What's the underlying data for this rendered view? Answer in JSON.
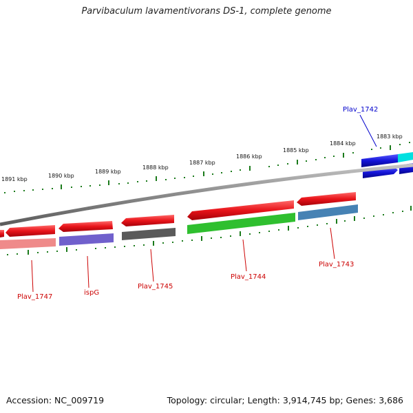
{
  "title": "Parvibaculum lavamentivorans DS-1, complete genome",
  "footer": {
    "accession": "Accession: NC_009719",
    "stats": "Topology: circular; Length: 3,914,745 bp; Genes: 3,686"
  },
  "colors": {
    "forward_cds": "#e8141a",
    "reverse_cds": "#1414d8",
    "backbone": "#8a8a8a",
    "tick": "#1a7a1a",
    "label_red": "#cc0000",
    "label_blue": "#0000cc"
  },
  "kbp_ticks": [
    "1891 kbp",
    "1890 kbp",
    "1889 kbp",
    "1888 kbp",
    "1887 kbp",
    "1886 kbp",
    "1885 kbp",
    "1884 kbp",
    "1883 kbp"
  ],
  "genes": [
    {
      "label": "Plav_1747",
      "bar_color": "#ef8a8a"
    },
    {
      "label": "ispG",
      "bar_color": "#7060cc"
    },
    {
      "label": "Plav_1745",
      "bar_color": "#5a5a5a"
    },
    {
      "label": "Plav_1744",
      "bar_color": "#2fbf2f"
    },
    {
      "label": "Plav_1743",
      "bar_color": "#4682b4"
    },
    {
      "label": "Plav_1742",
      "bar_color": "#00e0e0"
    }
  ]
}
